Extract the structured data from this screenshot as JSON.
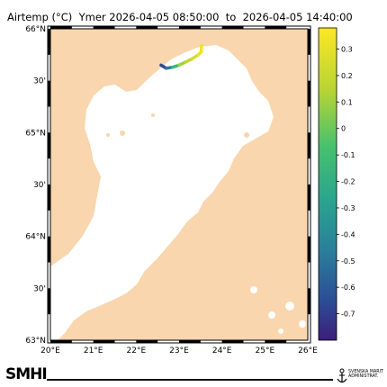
{
  "title": "Airtemp (°C)  Ymer 2026-04-05 08:50:00  to  2026-04-05 14:40:00",
  "map": {
    "lat_labels": [
      "66°N",
      "30'",
      "65°N",
      "30'",
      "64°N",
      "30'",
      "63°N"
    ],
    "lon_labels": [
      "20°E",
      "21°E",
      "22°E",
      "23°E",
      "24°E",
      "25°E",
      "26°E"
    ],
    "land_color": "#f9d6ad",
    "sea_color": "#ffffff"
  },
  "colorbar": {
    "ticks": [
      "0.3",
      "0.2",
      "0.1",
      "0",
      "-0.1",
      "-0.2",
      "-0.3",
      "-0.4",
      "-0.5",
      "-0.6",
      "-0.7"
    ],
    "tick_values": [
      0.3,
      0.2,
      0.1,
      0,
      -0.1,
      -0.2,
      -0.3,
      -0.4,
      -0.5,
      -0.6,
      -0.7
    ],
    "range": [
      -0.8,
      0.38
    ],
    "colormap": "viridis"
  },
  "track": {
    "lon": [
      22.58,
      22.7,
      22.85,
      23.0,
      23.15,
      23.3,
      23.45,
      23.52,
      23.52
    ],
    "lat": [
      65.65,
      65.62,
      65.63,
      65.65,
      65.68,
      65.71,
      65.75,
      65.78,
      65.84
    ],
    "values": [
      -0.75,
      -0.6,
      -0.35,
      0.05,
      0.15,
      0.22,
      0.28,
      0.33,
      0.35
    ]
  },
  "footer": {
    "logo_left": "SMHI",
    "logo_right": "SVENSKA MARIT\nADMINISTRAT."
  }
}
